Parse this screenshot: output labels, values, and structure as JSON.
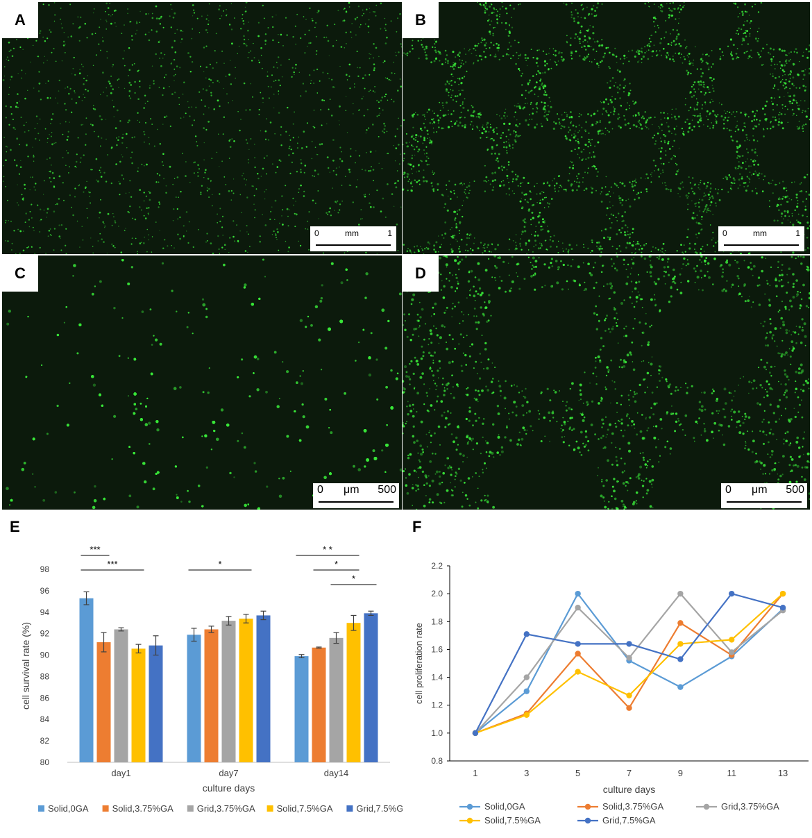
{
  "panels": [
    {
      "letter": "A",
      "scale": {
        "start": "0",
        "unit": "mm",
        "end": "1"
      }
    },
    {
      "letter": "B",
      "scale": {
        "start": "0",
        "unit": "mm",
        "end": "1"
      }
    },
    {
      "letter": "C",
      "scale": {
        "start": "0",
        "unit": "μm",
        "end": "500"
      }
    },
    {
      "letter": "D",
      "scale": {
        "start": "0",
        "unit": "μm",
        "end": "500"
      }
    }
  ],
  "colors": {
    "Solid,0GA": "#5b9bd5",
    "Solid,3.75%GA": "#ed7d31",
    "Grid,3.75%GA": "#a5a5a5",
    "Solid,7.5%GA": "#ffc000",
    "Grid,7.5%GA": "#4472c4",
    "micrograph_background": "#0c1a0c",
    "cell_green": "#39e639"
  },
  "chart_data": [
    {
      "letter": "E",
      "type": "bar",
      "xlabel": "culture days",
      "ylabel": "cell survival rate (%)",
      "ylim": [
        80,
        98
      ],
      "yticks": [
        "80",
        "82",
        "84",
        "86",
        "88",
        "90",
        "92",
        "94",
        "96",
        "98"
      ],
      "categories": [
        "day1",
        "day7",
        "day14"
      ],
      "legend_position": "bottom",
      "series": [
        {
          "name": "Solid,0GA",
          "values": [
            95.3,
            91.9,
            89.9
          ],
          "errors": [
            0.6,
            0.6,
            0.15
          ]
        },
        {
          "name": "Solid,3.75%GA",
          "values": [
            91.2,
            92.4,
            90.7
          ],
          "errors": [
            0.9,
            0.3,
            0.05
          ]
        },
        {
          "name": "Grid,3.75%GA",
          "values": [
            92.4,
            93.2,
            91.6
          ],
          "errors": [
            0.15,
            0.4,
            0.5
          ]
        },
        {
          "name": "Solid,7.5%GA",
          "values": [
            90.6,
            93.4,
            93.0
          ],
          "errors": [
            0.4,
            0.4,
            0.7
          ]
        },
        {
          "name": "Grid,7.5%GA",
          "values": [
            90.9,
            93.7,
            93.9
          ],
          "errors": [
            0.9,
            0.4,
            0.2
          ]
        }
      ],
      "significance": [
        {
          "label": "***",
          "group": "day1",
          "from": 0,
          "to": 1,
          "level": 0
        },
        {
          "label": "***",
          "group": "day1",
          "from": 0,
          "to": 3,
          "level": 1
        },
        {
          "label": "*",
          "group": "day7",
          "from": 0,
          "to": 3,
          "level": 1
        },
        {
          "label": "* *",
          "group": "day14",
          "from": 0,
          "to": 3,
          "level": 0
        },
        {
          "label": "*",
          "group": "day14",
          "from": 1,
          "to": 3,
          "level": 1
        },
        {
          "label": "*",
          "group": "day14",
          "from": 2,
          "to": 4,
          "level": 2
        }
      ]
    },
    {
      "letter": "F",
      "type": "line",
      "xlabel": "culture days",
      "ylabel": "cell proliferation rate",
      "ylim": [
        0.8,
        2.2
      ],
      "yticks": [
        "0.8",
        "1.0",
        "1.2",
        "1.4",
        "1.6",
        "1.8",
        "2.0",
        "2.2"
      ],
      "x": [
        1,
        3,
        5,
        7,
        9,
        11,
        13
      ],
      "legend_position": "bottom",
      "series": [
        {
          "name": "Solid,0GA",
          "values": [
            1.0,
            1.3,
            2.0,
            1.52,
            1.33,
            1.55,
            1.89
          ]
        },
        {
          "name": "Solid,3.75%GA",
          "values": [
            1.0,
            1.14,
            1.57,
            1.18,
            1.79,
            1.56,
            2.0
          ]
        },
        {
          "name": "Grid,3.75%GA",
          "values": [
            1.0,
            1.4,
            1.9,
            1.54,
            2.0,
            1.58,
            1.88
          ]
        },
        {
          "name": "Solid,7.5%GA",
          "values": [
            1.0,
            1.13,
            1.44,
            1.27,
            1.64,
            1.67,
            2.0
          ]
        },
        {
          "name": "Grid,7.5%GA",
          "values": [
            1.0,
            1.71,
            1.64,
            1.64,
            1.53,
            2.0,
            1.9
          ]
        }
      ]
    }
  ]
}
